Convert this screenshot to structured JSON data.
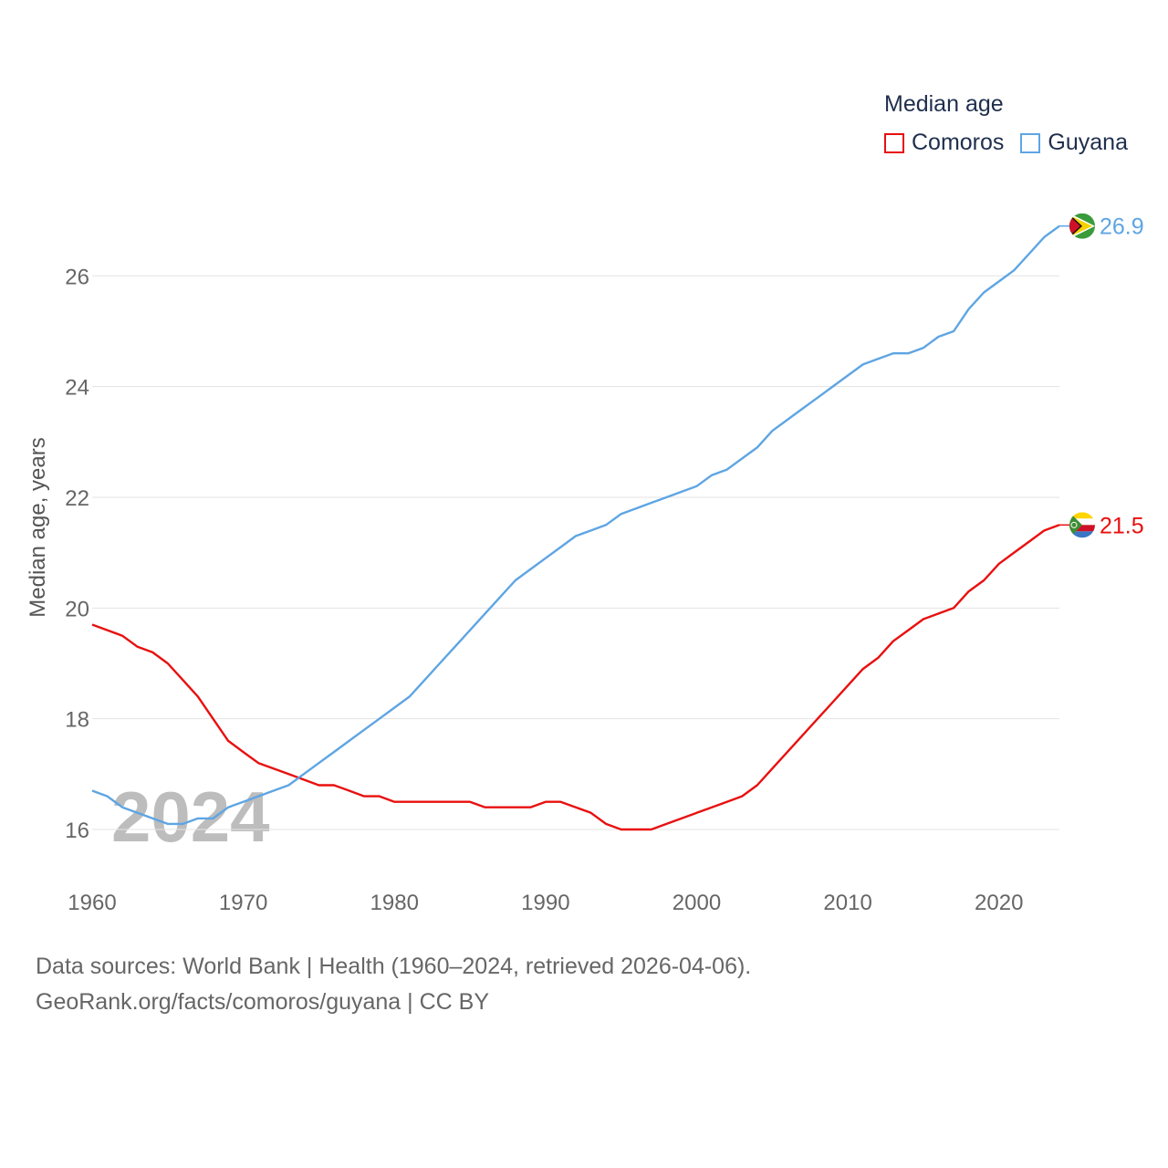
{
  "legend": {
    "title": "Median age",
    "items": [
      {
        "name": "Comoros",
        "color": "#e8100f"
      },
      {
        "name": "Guyana",
        "color": "#5ea5e3"
      }
    ]
  },
  "source": {
    "line1": "Data sources: World Bank | Health (1960–2024, retrieved 2026-04-06).",
    "line2": "GeoRank.org/facts/comoros/guyana | CC BY"
  },
  "watermark_year": "2024",
  "chart_data": {
    "type": "line",
    "title": "Median age",
    "xlabel": "",
    "ylabel": "Median age, years",
    "xlim": [
      1960,
      2024
    ],
    "ylim": [
      15.5,
      27.5
    ],
    "x_ticks": [
      1960,
      1970,
      1980,
      1990,
      2000,
      2010,
      2020
    ],
    "y_ticks": [
      16,
      18,
      20,
      22,
      24,
      26
    ],
    "grid": true,
    "legend_position": "top-right",
    "x": [
      1960,
      1961,
      1962,
      1963,
      1964,
      1965,
      1966,
      1967,
      1968,
      1969,
      1970,
      1971,
      1972,
      1973,
      1974,
      1975,
      1976,
      1977,
      1978,
      1979,
      1980,
      1981,
      1982,
      1983,
      1984,
      1985,
      1986,
      1987,
      1988,
      1989,
      1990,
      1991,
      1992,
      1993,
      1994,
      1995,
      1996,
      1997,
      1998,
      1999,
      2000,
      2001,
      2002,
      2003,
      2004,
      2005,
      2006,
      2007,
      2008,
      2009,
      2010,
      2011,
      2012,
      2013,
      2014,
      2015,
      2016,
      2017,
      2018,
      2019,
      2020,
      2021,
      2022,
      2023,
      2024
    ],
    "series": [
      {
        "name": "Comoros",
        "color": "#e8100f",
        "end_label": "21.5",
        "values": [
          19.7,
          19.6,
          19.5,
          19.3,
          19.2,
          19.0,
          18.7,
          18.4,
          18.0,
          17.6,
          17.4,
          17.2,
          17.1,
          17.0,
          16.9,
          16.8,
          16.8,
          16.7,
          16.6,
          16.6,
          16.5,
          16.5,
          16.5,
          16.5,
          16.5,
          16.5,
          16.4,
          16.4,
          16.4,
          16.4,
          16.5,
          16.5,
          16.4,
          16.3,
          16.1,
          16.0,
          16.0,
          16.0,
          16.1,
          16.2,
          16.3,
          16.4,
          16.5,
          16.6,
          16.8,
          17.1,
          17.4,
          17.7,
          18.0,
          18.3,
          18.6,
          18.9,
          19.1,
          19.4,
          19.6,
          19.8,
          19.9,
          20.0,
          20.3,
          20.5,
          20.8,
          21.0,
          21.2,
          21.4,
          21.5
        ]
      },
      {
        "name": "Guyana",
        "color": "#5ea5e3",
        "end_label": "26.9",
        "values": [
          16.7,
          16.6,
          16.4,
          16.3,
          16.2,
          16.1,
          16.1,
          16.2,
          16.2,
          16.4,
          16.5,
          16.6,
          16.7,
          16.8,
          17.0,
          17.2,
          17.4,
          17.6,
          17.8,
          18.0,
          18.2,
          18.4,
          18.7,
          19.0,
          19.3,
          19.6,
          19.9,
          20.2,
          20.5,
          20.7,
          20.9,
          21.1,
          21.3,
          21.4,
          21.5,
          21.7,
          21.8,
          21.9,
          22.0,
          22.1,
          22.2,
          22.4,
          22.5,
          22.7,
          22.9,
          23.2,
          23.4,
          23.6,
          23.8,
          24.0,
          24.2,
          24.4,
          24.5,
          24.6,
          24.6,
          24.7,
          24.9,
          25.0,
          25.4,
          25.7,
          25.9,
          26.1,
          26.4,
          26.7,
          26.9
        ]
      }
    ]
  }
}
